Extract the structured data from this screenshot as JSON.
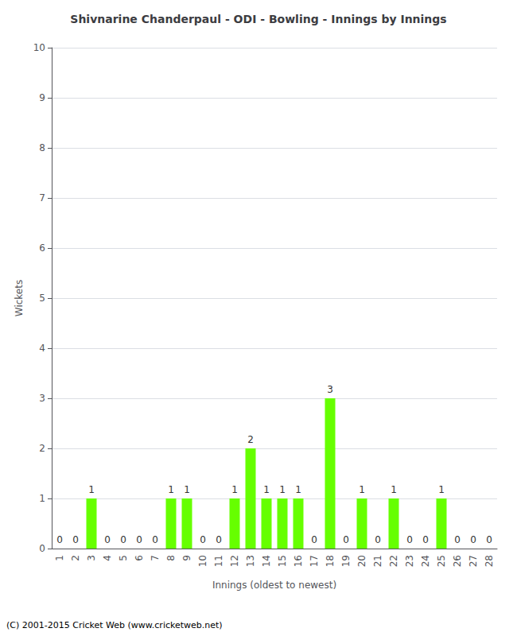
{
  "chart_data": {
    "type": "bar",
    "title": "Shivnarine Chanderpaul - ODI - Bowling - Innings by Innings",
    "xlabel": "Innings (oldest to newest)",
    "ylabel": "Wickets",
    "categories": [
      "1",
      "2",
      "3",
      "4",
      "5",
      "6",
      "7",
      "8",
      "9",
      "10",
      "11",
      "12",
      "13",
      "14",
      "15",
      "16",
      "17",
      "18",
      "19",
      "20",
      "21",
      "22",
      "23",
      "24",
      "25",
      "26",
      "27",
      "28"
    ],
    "values": [
      0,
      0,
      1,
      0,
      0,
      0,
      0,
      1,
      1,
      0,
      0,
      1,
      2,
      1,
      1,
      1,
      0,
      3,
      0,
      1,
      0,
      1,
      0,
      0,
      1,
      0,
      0,
      0
    ],
    "color": "#66ff00",
    "data_labels": true,
    "ylim": [
      0,
      10
    ],
    "yticks": [
      0,
      1,
      2,
      3,
      4,
      5,
      6,
      7,
      8,
      9,
      10
    ],
    "grid": true,
    "footer": "(C) 2001-2015 Cricket Web (www.cricketweb.net)"
  }
}
